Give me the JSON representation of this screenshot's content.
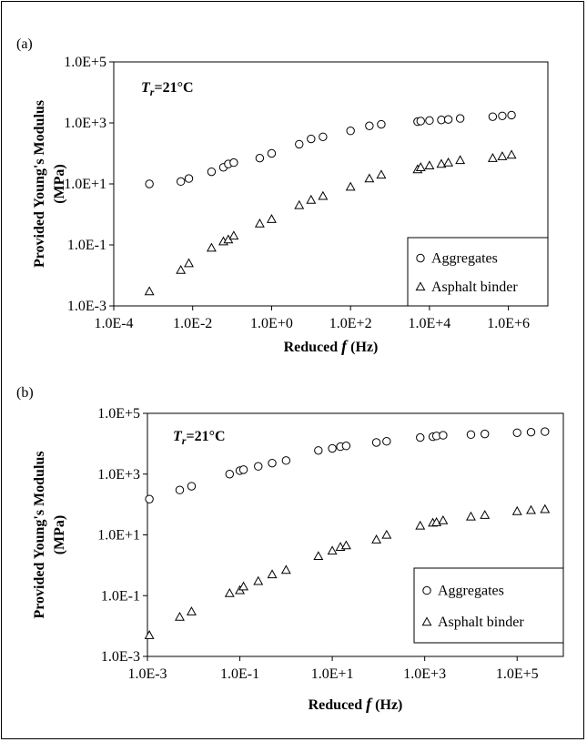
{
  "chart_data": [
    {
      "type": "scatter",
      "panel_label": "(a)",
      "annotation": {
        "prefix": "T",
        "sub": "r",
        "suffix": "=21°C"
      },
      "xlabel": {
        "main": "Reduced ",
        "italic": "f",
        "unit": " (Hz)"
      },
      "ylabel": [
        "Provided Young's Modulus",
        "(MPa)"
      ],
      "x_scale": "log",
      "y_scale": "log",
      "xlim": [
        0.0001,
        10000000
      ],
      "ylim": [
        0.001,
        100000
      ],
      "x_ticks": [
        0.0001,
        0.01,
        1,
        100,
        10000,
        1000000
      ],
      "x_tick_labels": [
        "1.0E-4",
        "1.0E-2",
        "1.0E+0",
        "1.0E+2",
        "1.0E+4",
        "1.0E+6"
      ],
      "y_ticks": [
        0.001,
        0.1,
        10,
        1000,
        100000
      ],
      "y_tick_labels": [
        "1.0E-3",
        "1.0E-1",
        "1.0E+1",
        "1.0E+3",
        "1.0E+5"
      ],
      "grid": false,
      "legend_position": "bottom-right",
      "series": [
        {
          "name": "Aggregates",
          "marker": "circle",
          "x": [
            0.0008,
            0.005,
            0.008,
            0.03,
            0.06,
            0.08,
            0.11,
            0.5,
            1,
            5,
            10,
            20,
            100,
            300,
            600,
            5000,
            6000,
            10000,
            20000,
            30000,
            60000,
            400000,
            700000,
            1200000
          ],
          "y": [
            10,
            12,
            15,
            25,
            35,
            45,
            50,
            70,
            100,
            200,
            300,
            350,
            550,
            800,
            900,
            1100,
            1150,
            1200,
            1250,
            1300,
            1400,
            1600,
            1700,
            1800
          ]
        },
        {
          "name": "Asphalt binder",
          "marker": "triangle",
          "x": [
            0.0008,
            0.005,
            0.008,
            0.03,
            0.06,
            0.08,
            0.11,
            0.5,
            1,
            5,
            10,
            20,
            100,
            300,
            600,
            5000,
            6000,
            10000,
            20000,
            30000,
            60000,
            400000,
            700000,
            1200000
          ],
          "y": [
            0.003,
            0.015,
            0.025,
            0.08,
            0.13,
            0.15,
            0.2,
            0.5,
            0.7,
            2,
            3,
            4,
            8,
            15,
            20,
            30,
            35,
            40,
            45,
            50,
            60,
            70,
            80,
            90
          ]
        }
      ]
    },
    {
      "type": "scatter",
      "panel_label": "(b)",
      "annotation": {
        "prefix": "T",
        "sub": "r",
        "suffix": "=21°C"
      },
      "xlabel": {
        "main": "Reduced ",
        "italic": "f",
        "unit": " (Hz)"
      },
      "ylabel": [
        "Provided Young's Modulus",
        "(MPa)"
      ],
      "x_scale": "log",
      "y_scale": "log",
      "xlim": [
        0.001,
        1000000
      ],
      "ylim": [
        0.001,
        100000
      ],
      "x_ticks": [
        0.001,
        0.1,
        10,
        1000,
        100000
      ],
      "x_tick_labels": [
        "1.0E-3",
        "1.0E-1",
        "1.0E+1",
        "1.0E+3",
        "1.0E+5"
      ],
      "y_ticks": [
        0.001,
        0.1,
        10,
        1000,
        100000
      ],
      "y_tick_labels": [
        "1.0E-3",
        "1.0E-1",
        "1.0E+1",
        "1.0E+3",
        "1.0E+5"
      ],
      "grid": false,
      "legend_position": "bottom-right",
      "series": [
        {
          "name": "Aggregates",
          "marker": "circle",
          "x": [
            0.0011,
            0.005,
            0.009,
            0.06,
            0.1,
            0.12,
            0.25,
            0.5,
            1,
            5,
            10,
            15,
            20,
            90,
            150,
            800,
            1500,
            1800,
            2500,
            10000,
            20000,
            100000,
            200000,
            400000
          ],
          "y": [
            150,
            300,
            400,
            1000,
            1300,
            1400,
            1800,
            2300,
            2800,
            6000,
            7000,
            8000,
            8500,
            11000,
            12000,
            16000,
            17000,
            18000,
            19000,
            20000,
            21000,
            23000,
            24000,
            25000
          ]
        },
        {
          "name": "Asphalt binder",
          "marker": "triangle",
          "x": [
            0.0011,
            0.005,
            0.009,
            0.06,
            0.1,
            0.12,
            0.25,
            0.5,
            1,
            5,
            10,
            15,
            20,
            90,
            150,
            800,
            1500,
            1800,
            2500,
            10000,
            20000,
            100000,
            200000,
            400000
          ],
          "y": [
            0.005,
            0.02,
            0.03,
            0.12,
            0.15,
            0.2,
            0.3,
            0.5,
            0.7,
            2,
            3,
            4,
            4.5,
            7,
            10,
            20,
            25,
            26,
            30,
            40,
            45,
            60,
            65,
            70
          ]
        }
      ]
    }
  ]
}
